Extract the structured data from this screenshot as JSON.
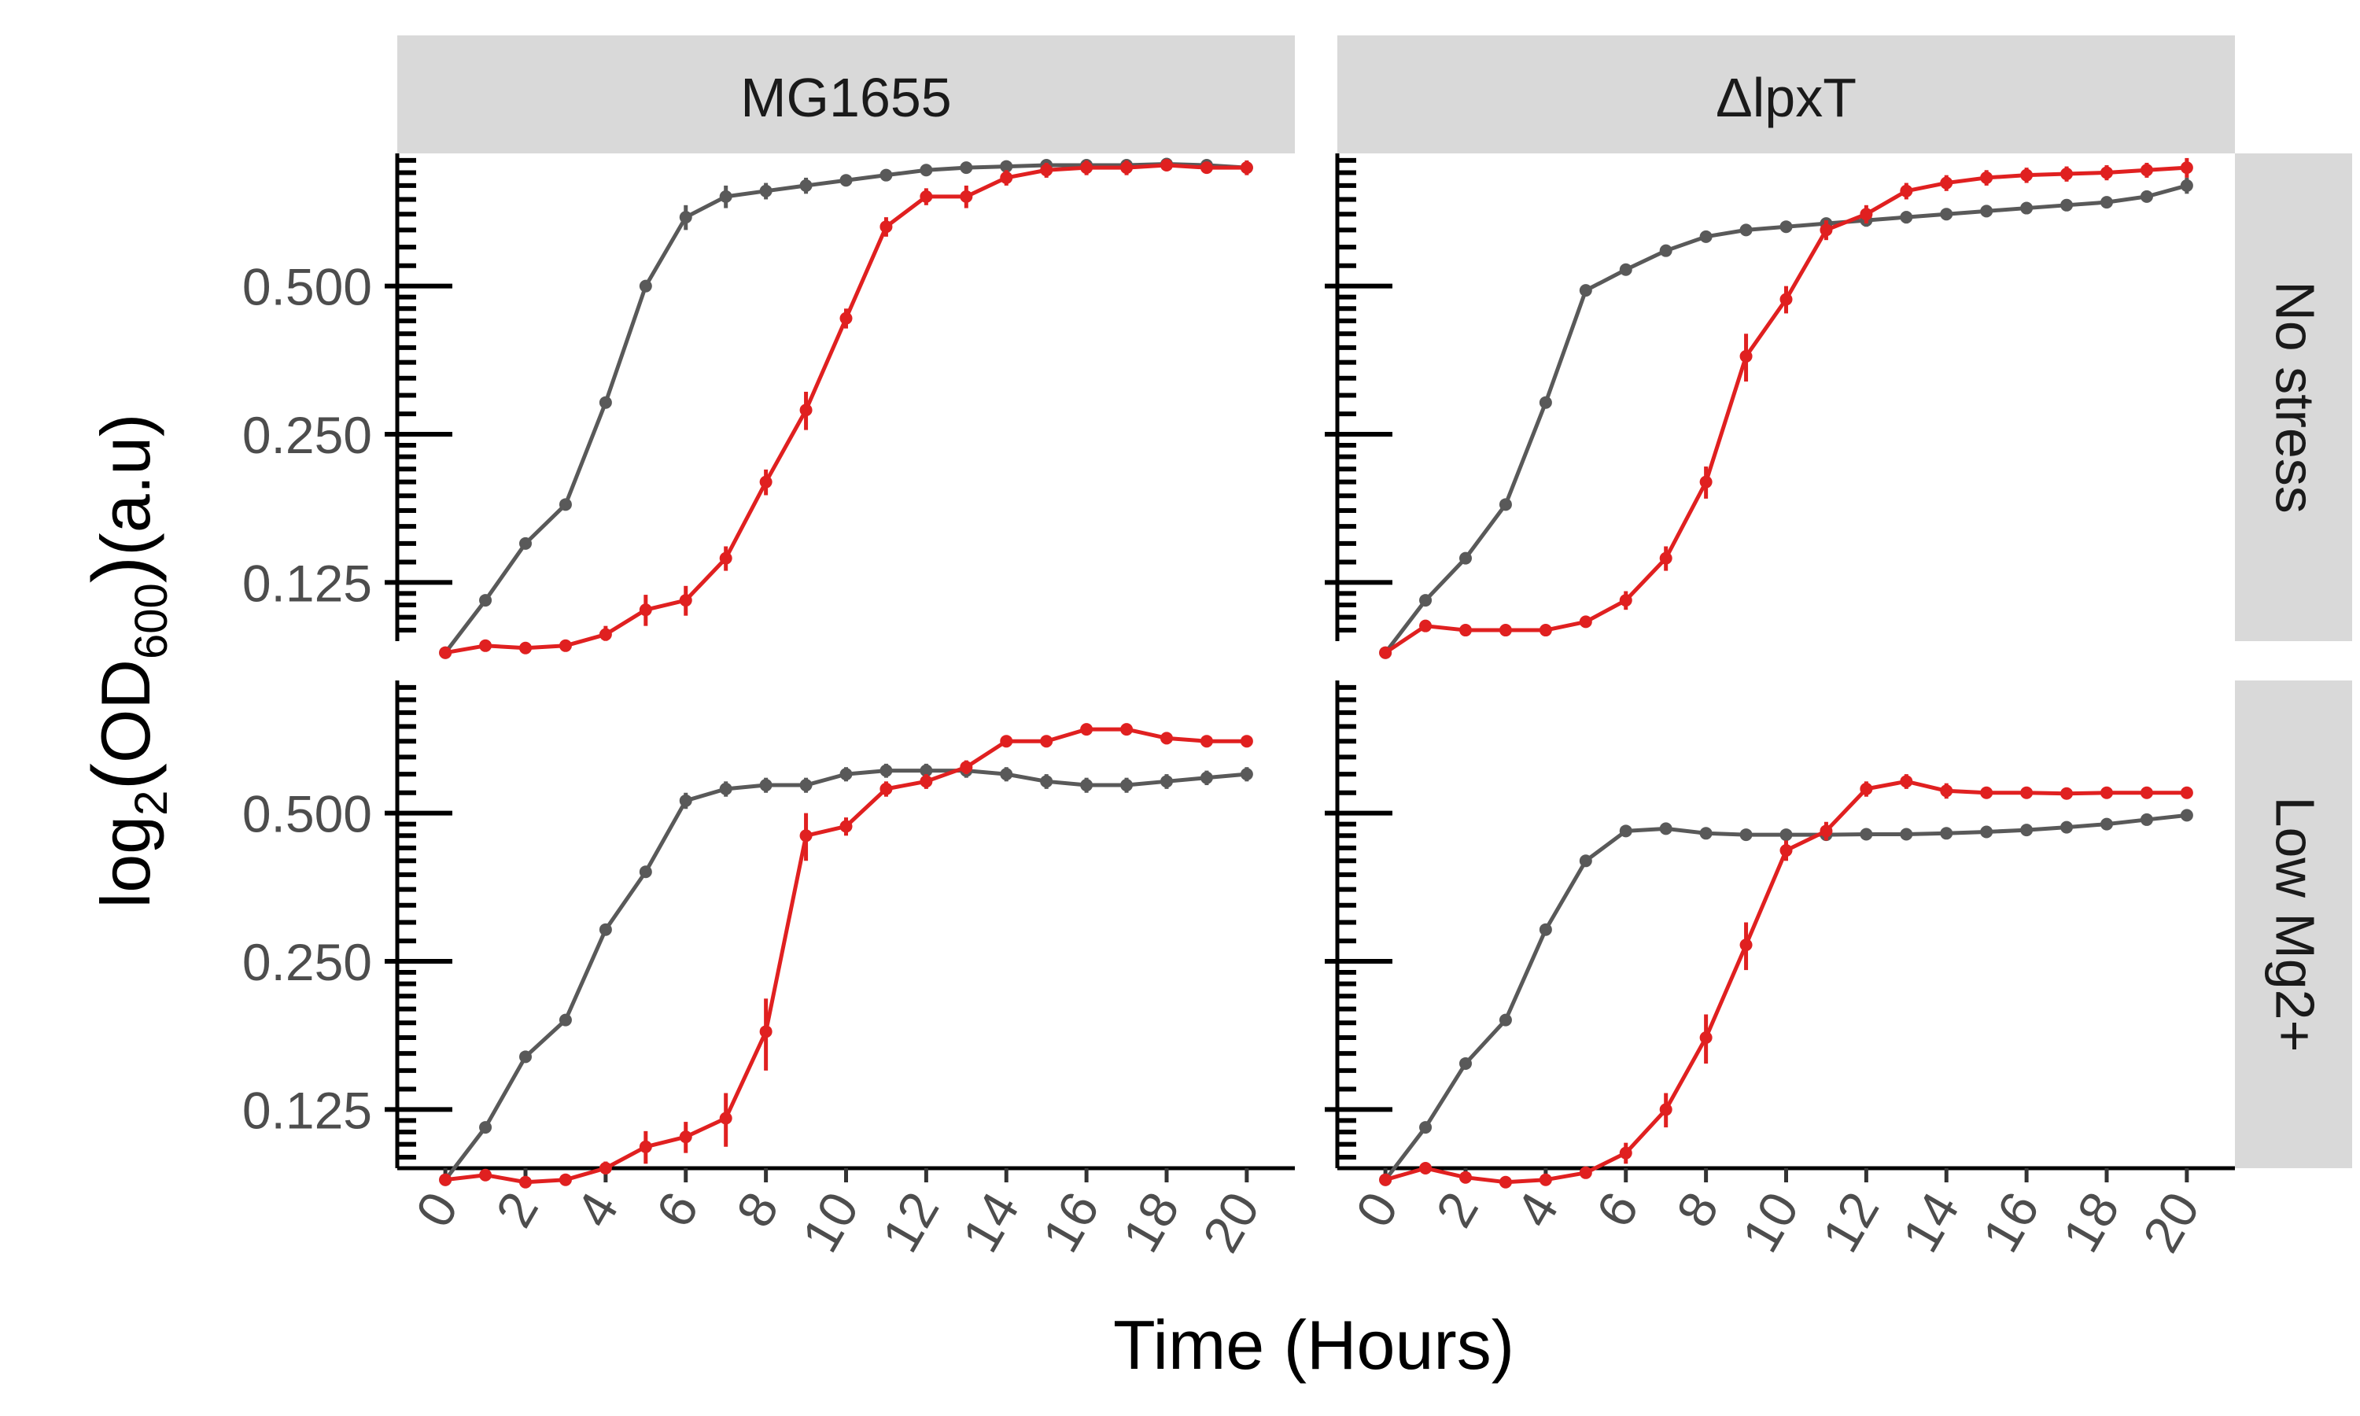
{
  "chart_data": {
    "type": "line",
    "xlabel": "Time (Hours)",
    "ylabel": "log2(OD600)(a.u)",
    "ylabel_parts": {
      "func": "log",
      "func_sub": "2",
      "main": "OD",
      "main_sub": "600",
      "unit": "(a.u)"
    },
    "y_scale": "log2",
    "ylim": [
      0.095,
      0.93
    ],
    "xlim": [
      -1.2,
      21.2
    ],
    "x_ticks": [
      "0",
      "2",
      "4",
      "6",
      "8",
      "10",
      "12",
      "14",
      "16",
      "18",
      "20"
    ],
    "y_ticks": [
      "0.125",
      "0.250",
      "0.500"
    ],
    "columns": [
      "MG1655",
      "ΔlpxT"
    ],
    "rows": [
      "No stress",
      "Low Mg2+"
    ],
    "colors": {
      "grey": "#595959",
      "red": "#e02020"
    },
    "x": [
      0,
      1,
      2,
      3,
      4,
      5,
      6,
      7,
      8,
      9,
      10,
      11,
      12,
      13,
      14,
      15,
      16,
      17,
      18,
      19,
      20
    ],
    "panels": [
      {
        "column": "MG1655",
        "row": "No stress",
        "series": [
          {
            "color": "grey",
            "values": [
              0.09,
              0.115,
              0.15,
              0.18,
              0.29,
              0.5,
              0.69,
              0.76,
              0.78,
              0.8,
              0.82,
              0.84,
              0.86,
              0.87,
              0.875,
              0.88,
              0.88,
              0.88,
              0.885,
              0.88,
              0.87
            ],
            "err": [
              0,
              0,
              0,
              0,
              0,
              0,
              0.04,
              0.04,
              0.03,
              0.03,
              0.02,
              0.02,
              0.02,
              0.02,
              0.02,
              0.02,
              0.02,
              0.02,
              0.02,
              0.02,
              0.02
            ]
          },
          {
            "color": "red",
            "values": [
              0.09,
              0.093,
              0.092,
              0.093,
              0.098,
              0.11,
              0.115,
              0.14,
              0.2,
              0.28,
              0.43,
              0.66,
              0.76,
              0.76,
              0.83,
              0.86,
              0.87,
              0.87,
              0.88,
              0.87,
              0.87
            ],
            "err": [
              0,
              0,
              0,
              0,
              0.004,
              0.008,
              0.008,
              0.008,
              0.012,
              0.025,
              0.02,
              0.03,
              0.03,
              0.04,
              0.03,
              0.03,
              0.03,
              0.03,
              0.02,
              0.02,
              0.03
            ]
          }
        ]
      },
      {
        "column": "ΔlpxT",
        "row": "No stress",
        "series": [
          {
            "color": "grey",
            "values": [
              0.09,
              0.115,
              0.14,
              0.18,
              0.29,
              0.49,
              0.54,
              0.59,
              0.63,
              0.65,
              0.66,
              0.67,
              0.68,
              0.69,
              0.7,
              0.71,
              0.72,
              0.73,
              0.74,
              0.76,
              0.8
            ],
            "err": [
              0,
              0,
              0,
              0,
              0,
              0,
              0,
              0.01,
              0.01,
              0.01,
              0.01,
              0.015,
              0.02,
              0.02,
              0.02,
              0.02,
              0.02,
              0.02,
              0.02,
              0.02,
              0.03
            ]
          },
          {
            "color": "red",
            "values": [
              0.09,
              0.102,
              0.1,
              0.1,
              0.1,
              0.104,
              0.115,
              0.14,
              0.2,
              0.36,
              0.47,
              0.65,
              0.7,
              0.78,
              0.81,
              0.83,
              0.84,
              0.845,
              0.85,
              0.86,
              0.87
            ],
            "err": [
              0,
              0,
              0,
              0,
              0,
              0,
              0.005,
              0.008,
              0.015,
              0.04,
              0.03,
              0.03,
              0.03,
              0.03,
              0.03,
              0.03,
              0.03,
              0.03,
              0.03,
              0.03,
              0.04
            ]
          }
        ]
      },
      {
        "column": "MG1655",
        "row": "Low Mg2+",
        "series": [
          {
            "color": "grey",
            "values": [
              0.09,
              0.115,
              0.16,
              0.19,
              0.29,
              0.38,
              0.53,
              0.56,
              0.57,
              0.57,
              0.6,
              0.61,
              0.61,
              0.61,
              0.6,
              0.58,
              0.57,
              0.57,
              0.58,
              0.59,
              0.6
            ],
            "err": [
              0,
              0,
              0,
              0,
              0,
              0,
              0.02,
              0.02,
              0.02,
              0.02,
              0.02,
              0.02,
              0.02,
              0.02,
              0.02,
              0.02,
              0.02,
              0.02,
              0.02,
              0.02,
              0.02
            ]
          },
          {
            "color": "red",
            "values": [
              0.09,
              0.092,
              0.089,
              0.09,
              0.095,
              0.105,
              0.11,
              0.12,
              0.18,
              0.45,
              0.47,
              0.56,
              0.58,
              0.62,
              0.7,
              0.7,
              0.74,
              0.74,
              0.71,
              0.7,
              0.7
            ],
            "err": [
              0,
              0,
              0,
              0,
              0.003,
              0.008,
              0.008,
              0.015,
              0.03,
              0.05,
              0.02,
              0.02,
              0.02,
              0.02,
              0.02,
              0.02,
              0.02,
              0.02,
              0.02,
              0.02,
              0.02
            ]
          }
        ]
      },
      {
        "column": "ΔlpxT",
        "row": "Low Mg2+",
        "series": [
          {
            "color": "grey",
            "values": [
              0.09,
              0.115,
              0.155,
              0.19,
              0.29,
              0.4,
              0.46,
              0.465,
              0.455,
              0.452,
              0.452,
              0.452,
              0.453,
              0.453,
              0.455,
              0.458,
              0.462,
              0.468,
              0.475,
              0.485,
              0.495
            ],
            "err": [
              0,
              0,
              0,
              0,
              0,
              0,
              0,
              0,
              0,
              0,
              0,
              0,
              0,
              0,
              0,
              0,
              0,
              0,
              0,
              0,
              0
            ]
          },
          {
            "color": "red",
            "values": [
              0.09,
              0.095,
              0.091,
              0.089,
              0.09,
              0.093,
              0.102,
              0.125,
              0.175,
              0.27,
              0.42,
              0.46,
              0.56,
              0.58,
              0.555,
              0.55,
              0.55,
              0.548,
              0.55,
              0.55,
              0.55
            ],
            "err": [
              0,
              0,
              0,
              0,
              0,
              0,
              0.005,
              0.01,
              0.02,
              0.03,
              0.02,
              0.02,
              0.02,
              0.02,
              0.02,
              0.01,
              0.01,
              0.01,
              0.01,
              0.01,
              0.01
            ]
          }
        ]
      }
    ]
  }
}
